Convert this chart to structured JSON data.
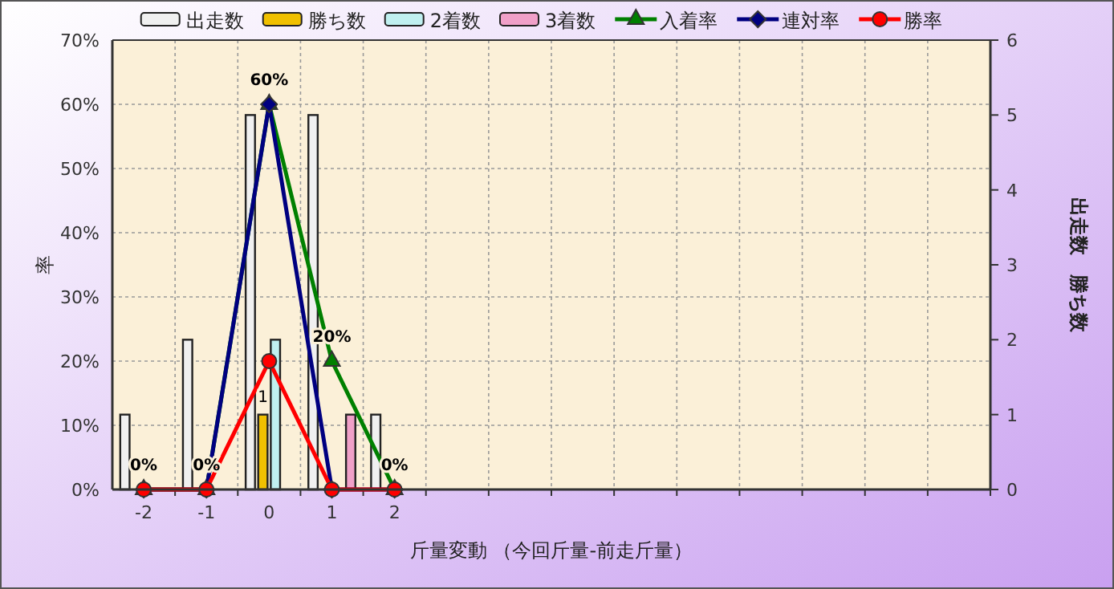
{
  "chart_data": {
    "type": "bar",
    "xlabel": "斤量変動 （今回斤量-前走斤量）",
    "ylabel": "率",
    "y2label": "出走数　勝ち数",
    "categories": [
      "-2",
      "-1",
      "0",
      "1",
      "2",
      null,
      null,
      null,
      null,
      null,
      null,
      null,
      null,
      null
    ],
    "ylim": [
      0,
      70
    ],
    "yticks": [
      {
        "value": 0,
        "label": "0%"
      },
      {
        "value": 10,
        "label": "10%"
      },
      {
        "value": 20,
        "label": "20%"
      },
      {
        "value": 30,
        "label": "30%"
      },
      {
        "value": 40,
        "label": "40%"
      },
      {
        "value": 50,
        "label": "50%"
      },
      {
        "value": 60,
        "label": "60%"
      },
      {
        "value": 70,
        "label": "70%"
      }
    ],
    "y2lim": [
      0,
      6
    ],
    "y2ticks": [
      0,
      1,
      2,
      3,
      4,
      5,
      6
    ],
    "grid": true,
    "legend": "top",
    "series": [
      {
        "name": "出走数",
        "axis": "y2",
        "color": "#f0f0f0",
        "values": [
          1,
          2,
          5,
          5,
          1,
          null,
          null,
          null,
          null,
          null,
          null,
          null,
          null,
          null
        ]
      },
      {
        "name": "勝ち数",
        "axis": "y2",
        "color": "#f0c000",
        "values": [
          0,
          0,
          1,
          0,
          0,
          null,
          null,
          null,
          null,
          null,
          null,
          null,
          null,
          null
        ],
        "value_labels": [
          null,
          null,
          "1",
          null,
          null,
          null,
          null,
          null,
          null,
          null,
          null,
          null,
          null,
          null
        ]
      },
      {
        "name": "2着数",
        "axis": "y2",
        "color": "#c0f0f0",
        "values": [
          0,
          0,
          2,
          0,
          0,
          null,
          null,
          null,
          null,
          null,
          null,
          null,
          null,
          null
        ]
      },
      {
        "name": "3着数",
        "axis": "y2",
        "color": "#f0a0c8",
        "values": [
          0,
          0,
          0,
          1,
          0,
          null,
          null,
          null,
          null,
          null,
          null,
          null,
          null,
          null
        ]
      },
      {
        "name": "入着率",
        "type": "line",
        "axis": "y",
        "color": "#008000",
        "marker": "triangle",
        "values": [
          0,
          0,
          60,
          20,
          0,
          null,
          null,
          null,
          null,
          null,
          null,
          null,
          null,
          null
        ],
        "value_labels": [
          "0%",
          "0%",
          "60%",
          "20%",
          "0%",
          null,
          null,
          null,
          null,
          null,
          null,
          null,
          null,
          null
        ]
      },
      {
        "name": "連対率",
        "type": "line",
        "axis": "y",
        "color": "#000080",
        "marker": "diamond",
        "values": [
          0,
          0,
          60,
          0,
          0,
          null,
          null,
          null,
          null,
          null,
          null,
          null,
          null,
          null
        ]
      },
      {
        "name": "勝率",
        "type": "line",
        "axis": "y",
        "color": "#ff0000",
        "marker": "circle",
        "values": [
          0,
          0,
          20,
          0,
          0,
          null,
          null,
          null,
          null,
          null,
          null,
          null,
          null,
          null
        ]
      }
    ]
  }
}
